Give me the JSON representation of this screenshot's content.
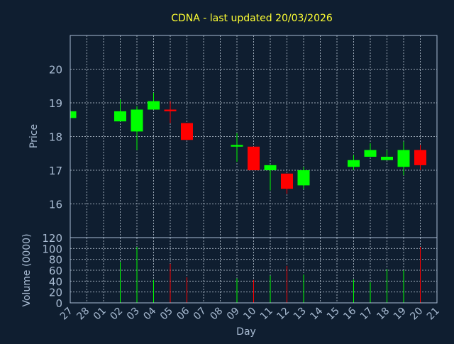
{
  "chart_data": {
    "type": "candlestick",
    "title": "CDNA - last updated 20/03/2026",
    "xlabel": "Day",
    "x_ticks": [
      "27",
      "28",
      "01",
      "02",
      "03",
      "04",
      "05",
      "06",
      "07",
      "08",
      "09",
      "10",
      "11",
      "12",
      "13",
      "14",
      "15",
      "16",
      "17",
      "18",
      "19",
      "20",
      "21"
    ],
    "price_panel": {
      "ylabel": "Price",
      "ylim": [
        15.0,
        21.0
      ],
      "y_ticks": [
        16,
        17,
        18,
        19,
        20
      ],
      "grid": true
    },
    "volume_panel": {
      "ylabel": "Volume (0000)",
      "ylim": [
        0,
        120
      ],
      "y_ticks": [
        0,
        20,
        40,
        60,
        80,
        100,
        120
      ],
      "grid": true
    },
    "up_color": "#00ff00",
    "down_color": "#ff0000",
    "series": [
      {
        "day": "27",
        "open": 18.55,
        "close": 18.75,
        "high": 18.75,
        "low": 18.55,
        "volume": 0
      },
      {
        "day": "02",
        "open": 18.45,
        "close": 18.75,
        "high": 19.1,
        "low": 18.45,
        "volume": 75
      },
      {
        "day": "03",
        "open": 18.15,
        "close": 18.8,
        "high": 18.9,
        "low": 17.6,
        "volume": 103
      },
      {
        "day": "04",
        "open": 18.8,
        "close": 19.05,
        "high": 19.3,
        "low": 18.8,
        "volume": 42
      },
      {
        "day": "05",
        "open": 18.8,
        "close": 18.75,
        "high": 19.05,
        "low": 18.4,
        "volume": 72
      },
      {
        "day": "06",
        "open": 18.4,
        "close": 17.9,
        "high": 18.4,
        "low": 17.9,
        "volume": 47
      },
      {
        "day": "09",
        "open": 17.7,
        "close": 17.75,
        "high": 18.1,
        "low": 17.25,
        "volume": 45
      },
      {
        "day": "10",
        "open": 17.7,
        "close": 17.0,
        "high": 17.7,
        "low": 17.0,
        "volume": 42
      },
      {
        "day": "11",
        "open": 17.0,
        "close": 17.15,
        "high": 17.15,
        "low": 16.4,
        "volume": 50
      },
      {
        "day": "12",
        "open": 16.9,
        "close": 16.45,
        "high": 16.9,
        "low": 16.3,
        "volume": 68
      },
      {
        "day": "13",
        "open": 16.55,
        "close": 17.0,
        "high": 17.1,
        "low": 16.45,
        "volume": 52
      },
      {
        "day": "16",
        "open": 17.1,
        "close": 17.3,
        "high": 17.45,
        "low": 17.0,
        "volume": 43
      },
      {
        "day": "17",
        "open": 17.4,
        "close": 17.6,
        "high": 17.8,
        "low": 17.4,
        "volume": 38
      },
      {
        "day": "18",
        "open": 17.3,
        "close": 17.4,
        "high": 17.6,
        "low": 17.3,
        "volume": 62
      },
      {
        "day": "19",
        "open": 17.1,
        "close": 17.6,
        "high": 17.85,
        "low": 16.85,
        "volume": 60
      },
      {
        "day": "20",
        "open": 17.6,
        "close": 17.15,
        "high": 17.75,
        "low": 17.0,
        "volume": 103
      }
    ]
  }
}
